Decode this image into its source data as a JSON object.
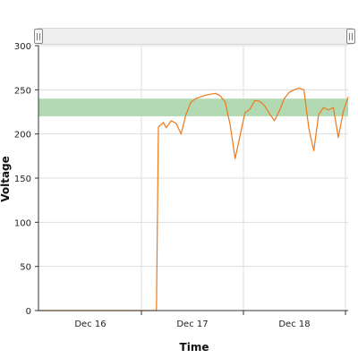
{
  "chart_data": {
    "type": "line",
    "xlabel": "Time",
    "ylabel": "Voltage",
    "ylim": [
      0,
      300
    ],
    "yticks": [
      0,
      50,
      100,
      150,
      200,
      250,
      300
    ],
    "xticks": [
      "Dec 16",
      "Dec 17",
      "Dec 18"
    ],
    "grid": true,
    "band": {
      "from": 220,
      "to": 240,
      "color": "#b3d9b3"
    },
    "line_color": "#f07818",
    "has_range_selector": true,
    "series": [
      {
        "x": [
          0,
          0.5,
          1,
          1.2,
          1.22,
          1.27,
          1.3,
          1.35,
          1.4,
          1.45,
          1.5,
          1.55,
          1.6,
          1.65,
          1.7,
          1.75,
          1.8,
          1.85,
          1.9,
          1.95,
          2.0,
          2.05,
          2.1,
          2.15,
          2.2,
          2.25,
          2.3,
          2.35,
          2.4,
          2.45,
          2.5,
          2.55,
          2.6,
          2.65,
          2.7,
          2.75,
          2.8,
          2.85,
          2.9,
          2.95,
          3.0,
          3.05,
          3.1,
          3.15
        ],
        "y": [
          0,
          0,
          0,
          0,
          208,
          213,
          207,
          215,
          212,
          200,
          222,
          236,
          240,
          242,
          244,
          245,
          246,
          243,
          236,
          210,
          172,
          198,
          224,
          228,
          238,
          237,
          232,
          223,
          215,
          226,
          240,
          247,
          250,
          252,
          250,
          206,
          181,
          222,
          230,
          227,
          230,
          196,
          225,
          242
        ]
      }
    ]
  },
  "range_selector": {
    "handle_left": "||",
    "handle_right": "||"
  }
}
